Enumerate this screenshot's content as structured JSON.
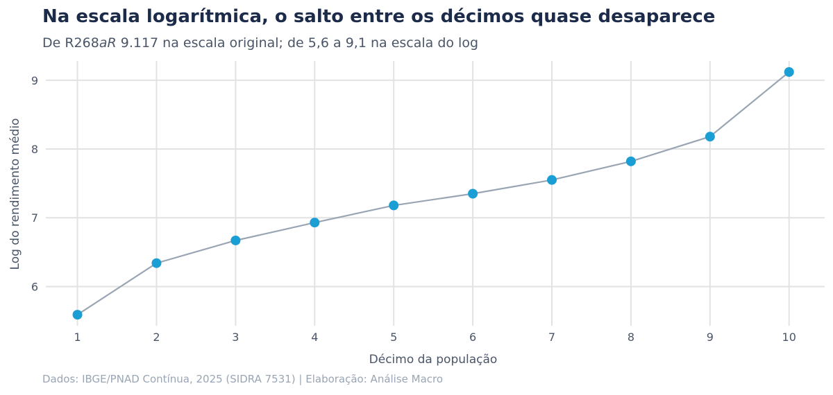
{
  "chart_data": {
    "type": "line",
    "title": "Na escala logarítmica, o salto entre os décimos quase desaparece",
    "subtitle_parts": [
      "De R268",
      "aR",
      " 9.117 na escala original; de 5,6 a 9,1 na escala do log"
    ],
    "xlabel": "Décimo da população",
    "ylabel": "Log do rendimento médio",
    "caption": "Dados: IBGE/PNAD Contínua, 2025 (SIDRA 7531) | Elaboração: Análise Macro",
    "x": [
      1,
      2,
      3,
      4,
      5,
      6,
      7,
      8,
      9,
      10
    ],
    "y": [
      5.59,
      6.34,
      6.67,
      6.93,
      7.18,
      7.35,
      7.55,
      7.82,
      8.18,
      9.12
    ],
    "xticks": [
      1,
      2,
      3,
      4,
      5,
      6,
      7,
      8,
      9,
      10
    ],
    "yticks": [
      6,
      7,
      8,
      9
    ],
    "xlim": [
      0.6,
      10.45
    ],
    "ylim": [
      5.43,
      9.28
    ],
    "grid": true,
    "colors": {
      "line": "#9aa5b4",
      "marker": "#1a9ed4",
      "grid": "#e2e2e2"
    }
  }
}
